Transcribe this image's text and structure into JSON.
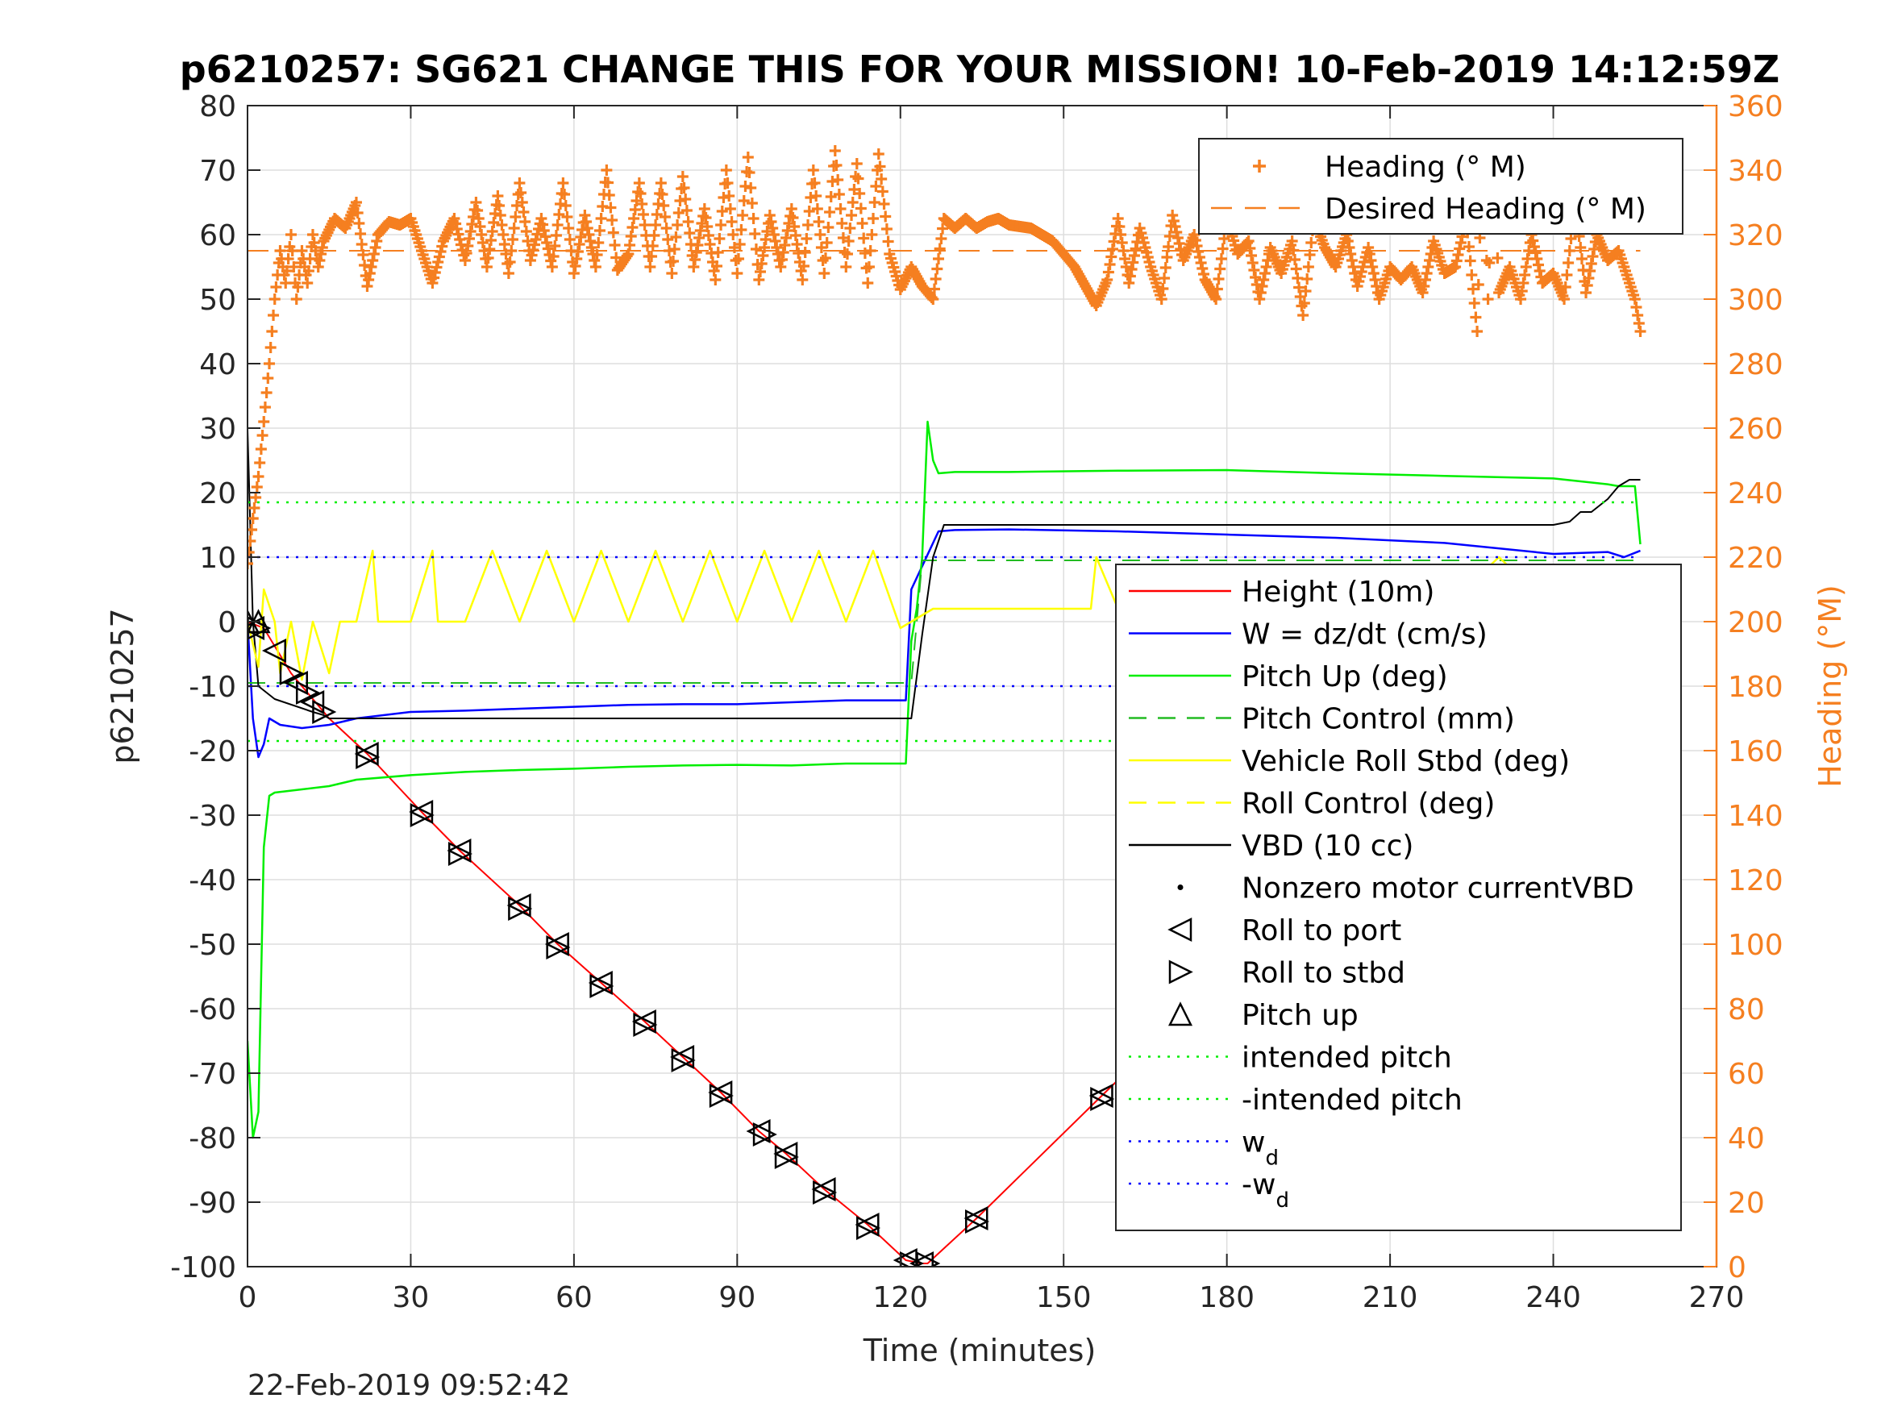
{
  "chart_data": {
    "type": "line",
    "title": "p6210257: SG621 CHANGE THIS FOR YOUR MISSION! 10-Feb-2019 14:12:59Z",
    "xlabel": "Time (minutes)",
    "ylabel": "p6210257",
    "y2label": "Heading (°M)",
    "footer": "22-Feb-2019 09:52:42",
    "xlim": [
      0,
      270
    ],
    "ylim": [
      -100,
      80
    ],
    "y2lim": [
      0,
      360
    ],
    "xticks": [
      "0",
      "30",
      "60",
      "90",
      "120",
      "150",
      "180",
      "210",
      "240",
      "270"
    ],
    "yticks": [
      "80",
      "70",
      "60",
      "50",
      "40",
      "30",
      "20",
      "10",
      "0",
      "-10",
      "-20",
      "-30",
      "-40",
      "-50",
      "-60",
      "-70",
      "-80",
      "-90",
      "-100"
    ],
    "y2ticks": [
      "360",
      "340",
      "320",
      "300",
      "280",
      "260",
      "240",
      "220",
      "200",
      "180",
      "160",
      "140",
      "120",
      "100",
      "80",
      "60",
      "40",
      "20",
      "0"
    ],
    "grid": true,
    "colors": {
      "heading": "#F57F20",
      "height": "#FF0000",
      "w": "#0000FF",
      "pitch": "#00EE00",
      "roll": "#FFFF00",
      "vbd": "#000000",
      "right_axis": "#F57F20"
    },
    "legend_heading": {
      "placement": "top-right",
      "entries": [
        {
          "label": "Heading (° M)",
          "style": "plus-orange"
        },
        {
          "label": "Desired Heading (° M)",
          "style": "dash-orange"
        }
      ]
    },
    "legend_main": {
      "placement": "right",
      "entries": [
        {
          "label": "Height (10m)",
          "style": "line-red"
        },
        {
          "label": "W = dz/dt (cm/s)",
          "style": "line-blue"
        },
        {
          "label": "Pitch Up (deg)",
          "style": "line-green"
        },
        {
          "label": "Pitch Control (mm)",
          "style": "dash-green"
        },
        {
          "label": "Vehicle Roll Stbd (deg)",
          "style": "line-yellow"
        },
        {
          "label": "Roll Control (deg)",
          "style": "dash-yellow"
        },
        {
          "label": "VBD (10 cc)",
          "style": "line-black"
        },
        {
          "label": "Nonzero motor currentVBD",
          "style": "dot-black"
        },
        {
          "label": "Roll to port",
          "style": "tri-left"
        },
        {
          "label": "Roll to stbd",
          "style": "tri-right"
        },
        {
          "label": "Pitch up",
          "style": "tri-up"
        },
        {
          "label": "intended pitch",
          "style": "dot-green"
        },
        {
          "label": "-intended pitch",
          "style": "dot-green"
        },
        {
          "label": "w",
          "sub": "d",
          "style": "dot-blue"
        },
        {
          "label": "-w",
          "sub": "d",
          "style": "dot-blue"
        }
      ]
    },
    "series": [
      {
        "name": "Height (10m)",
        "axis": "left",
        "x": [
          0,
          3,
          8,
          15,
          22,
          32,
          39,
          50,
          57,
          65,
          73,
          80,
          87,
          94,
          99,
          106,
          114,
          121,
          124,
          125,
          134,
          157,
          168,
          178,
          187,
          196,
          209,
          222,
          230,
          239,
          245,
          251,
          256
        ],
        "y": [
          0,
          -1,
          -8,
          -15,
          -20.5,
          -29.5,
          -35.5,
          -44,
          -50,
          -56,
          -62,
          -67.5,
          -73,
          -79,
          -82.5,
          -88,
          -93.5,
          -99,
          -99.5,
          -99.5,
          -92.5,
          -73.5,
          -64.5,
          -56.5,
          -48,
          -41.5,
          -31.5,
          -22,
          -15.5,
          -10,
          -5.5,
          -2,
          0
        ]
      },
      {
        "name": "W = dz/dt (cm/s)",
        "axis": "left",
        "x": [
          0,
          1,
          2,
          3,
          4,
          6,
          10,
          15,
          20,
          30,
          40,
          50,
          60,
          70,
          80,
          90,
          100,
          110,
          121,
          122,
          127,
          130,
          140,
          160,
          180,
          200,
          220,
          240,
          250,
          253,
          256
        ],
        "y": [
          0,
          -15,
          -21,
          -19,
          -15,
          -16,
          -16.5,
          -16,
          -15,
          -14,
          -13.8,
          -13.5,
          -13.2,
          -12.9,
          -12.8,
          -12.8,
          -12.5,
          -12.2,
          -12.2,
          5,
          14,
          14.2,
          14.3,
          14,
          13.5,
          13,
          12.2,
          10.5,
          10.8,
          10,
          11
        ]
      },
      {
        "name": "Pitch Up (deg)",
        "axis": "left",
        "x": [
          0,
          1,
          2,
          3,
          4,
          5,
          10,
          15,
          20,
          30,
          40,
          50,
          60,
          70,
          80,
          90,
          100,
          110,
          121,
          122,
          123,
          124,
          125,
          126,
          127,
          130,
          140,
          160,
          180,
          200,
          220,
          240,
          250,
          252,
          255,
          256
        ],
        "y": [
          -65,
          -80,
          -76,
          -35,
          -27,
          -26.5,
          -26,
          -25.5,
          -24.5,
          -23.8,
          -23.3,
          -23,
          -22.8,
          -22.5,
          -22.3,
          -22.2,
          -22.3,
          -22,
          -22,
          -3,
          2,
          10,
          31,
          25,
          23,
          23.2,
          23.2,
          23.4,
          23.5,
          23,
          22.6,
          22.2,
          21.3,
          21,
          21,
          12
        ]
      },
      {
        "name": "Pitch Control (mm)",
        "axis": "left",
        "x": [
          0,
          122,
          124,
          256
        ],
        "y": [
          -9.5,
          -9.5,
          9.5,
          9.5
        ]
      },
      {
        "name": "VBD (10 cc)",
        "axis": "left",
        "x": [
          0,
          1,
          2,
          5,
          12,
          14,
          15,
          20,
          30,
          60,
          90,
          121,
          122,
          124,
          126,
          128,
          140,
          180,
          210,
          240,
          243,
          245,
          247,
          250,
          252,
          254,
          256
        ],
        "y": [
          30,
          0,
          -10,
          -12,
          -14,
          -14.5,
          -15,
          -15,
          -15,
          -15,
          -15,
          -15,
          -15,
          -2,
          10,
          15,
          15,
          15,
          15,
          15,
          15.5,
          17,
          17,
          19,
          21,
          22,
          22
        ]
      },
      {
        "name": "Heading (° M)",
        "axis": "right",
        "x": [
          0,
          1,
          2,
          3,
          4,
          5,
          6,
          7,
          8,
          9,
          10,
          11,
          12,
          13,
          14,
          16,
          18,
          20,
          22,
          24,
          26,
          28,
          30,
          32,
          34,
          36,
          38,
          40,
          42,
          44,
          46,
          48,
          50,
          52,
          54,
          56,
          58,
          60,
          62,
          64,
          66,
          68,
          70,
          72,
          74,
          76,
          78,
          80,
          82,
          84,
          86,
          88,
          90,
          92,
          94,
          96,
          98,
          100,
          102,
          104,
          106,
          108,
          110,
          112,
          114,
          116,
          118,
          120,
          122,
          124,
          126,
          128,
          130,
          132,
          134,
          136,
          138,
          140,
          144,
          148,
          152,
          156,
          158,
          160,
          162,
          164,
          166,
          168,
          170,
          172,
          174,
          176,
          178,
          180,
          182,
          184,
          186,
          188,
          190,
          192,
          194,
          196,
          198,
          200,
          202,
          204,
          206,
          208,
          210,
          212,
          214,
          216,
          218,
          220,
          222,
          224,
          226,
          227,
          228,
          229,
          230,
          232,
          234,
          236,
          238,
          240,
          242,
          244,
          246,
          248,
          250,
          252,
          254,
          255,
          256
        ],
        "y": [
          218,
          232,
          245,
          262,
          280,
          300,
          315,
          305,
          320,
          300,
          315,
          305,
          320,
          310,
          318,
          325,
          322,
          330,
          304,
          320,
          324,
          323,
          325,
          315,
          305,
          318,
          325,
          312,
          330,
          310,
          332,
          308,
          336,
          312,
          325,
          310,
          336,
          308,
          326,
          310,
          340,
          309,
          314,
          336,
          310,
          336,
          308,
          338,
          310,
          328,
          306,
          340,
          308,
          344,
          306,
          326,
          310,
          328,
          306,
          340,
          308,
          346,
          310,
          342,
          305,
          345,
          314,
          303,
          310,
          304,
          300,
          325,
          322,
          325,
          322,
          324,
          325,
          323,
          322,
          318,
          310,
          298,
          306,
          325,
          305,
          322,
          310,
          300,
          326,
          312,
          320,
          306,
          300,
          325,
          314,
          318,
          300,
          316,
          308,
          318,
          295,
          325,
          316,
          310,
          320,
          304,
          316,
          300,
          310,
          306,
          310,
          302,
          318,
          308,
          310,
          325,
          290,
          348,
          300,
          345,
          302,
          310,
          300,
          320,
          305,
          308,
          300,
          330,
          302,
          320,
          312,
          315,
          305,
          300,
          290
        ]
      },
      {
        "name": "Desired Heading (° M)",
        "axis": "right",
        "x": [
          0,
          256
        ],
        "y": [
          315,
          315
        ]
      },
      {
        "name": "Vehicle Roll Stbd (deg)",
        "axis": "left",
        "x": [
          0,
          2,
          3,
          5,
          6,
          8,
          10,
          12,
          15,
          17,
          20,
          23,
          24,
          30,
          34,
          35,
          40,
          45,
          50,
          55,
          60,
          65,
          70,
          75,
          80,
          85,
          90,
          95,
          100,
          105,
          110,
          115,
          120,
          122,
          124,
          126,
          150,
          155,
          156,
          160,
          180,
          200,
          220,
          230,
          240,
          245,
          250,
          252,
          254,
          256
        ],
        "y": [
          0,
          -7,
          5,
          0,
          -8,
          0,
          -9,
          0,
          -8,
          0,
          0,
          11,
          0,
          0,
          11,
          0,
          0,
          11,
          0,
          11,
          0,
          11,
          0,
          11,
          0,
          11,
          0,
          11,
          0,
          11,
          0,
          11,
          -1,
          0,
          1,
          2,
          2,
          2,
          10,
          2,
          2,
          2,
          2,
          10,
          2,
          -3,
          8,
          -4,
          4,
          2
        ]
      },
      {
        "name": "intended pitch",
        "axis": "left",
        "x": [
          0,
          256
        ],
        "y": [
          18.5,
          18.5
        ]
      },
      {
        "name": "-intended pitch",
        "axis": "left",
        "x": [
          0,
          256
        ],
        "y": [
          -18.5,
          -18.5
        ]
      },
      {
        "name": "w",
        "axis": "left",
        "x": [
          0,
          256
        ],
        "y": [
          10,
          10
        ]
      },
      {
        "name": "-w",
        "axis": "left",
        "x": [
          0,
          256
        ],
        "y": [
          -10,
          -10
        ]
      }
    ],
    "markers": {
      "roll_to_port": {
        "x": [
          1,
          5,
          9,
          12,
          22,
          32,
          39,
          50,
          57,
          65,
          73,
          80,
          87,
          94,
          99,
          106,
          114,
          121,
          124,
          134,
          157,
          168,
          178,
          187,
          196,
          209,
          222,
          230,
          239,
          245,
          251,
          255
        ],
        "y": [
          -1,
          -4.5,
          -9.5,
          -12.5,
          -20.5,
          -29.5,
          -35.5,
          -44,
          -50,
          -56,
          -62,
          -67.5,
          -73,
          -79,
          -82.5,
          -88,
          -93.5,
          -99,
          -99.5,
          -92.5,
          -73.5,
          -64.5,
          -56.5,
          -48,
          -41.5,
          -31.5,
          -22,
          -15.5,
          -10,
          -5.5,
          -2,
          -0.5
        ]
      },
      "roll_to_stbd": {
        "x": [
          2,
          8,
          11,
          14,
          22,
          32,
          39,
          50,
          57,
          65,
          73,
          80,
          87,
          95,
          99,
          106,
          114,
          122,
          125,
          134,
          157,
          168,
          178,
          187,
          196,
          209,
          222,
          231,
          240,
          246,
          252,
          256
        ],
        "y": [
          -1,
          -8,
          -11,
          -14,
          -21,
          -30,
          -36,
          -44.5,
          -50.5,
          -56.5,
          -62.5,
          -68,
          -73.5,
          -79.5,
          -83,
          -88.5,
          -94,
          -99.5,
          -99.5,
          -93,
          -74,
          -65,
          -57,
          -48.5,
          -42,
          -32,
          -22.5,
          -16,
          -10.5,
          -6,
          -2.5,
          -0.5
        ]
      },
      "pitch_up": {
        "x": [
          0,
          2,
          172
        ],
        "y": [
          0,
          0,
          -61
        ]
      }
    }
  }
}
